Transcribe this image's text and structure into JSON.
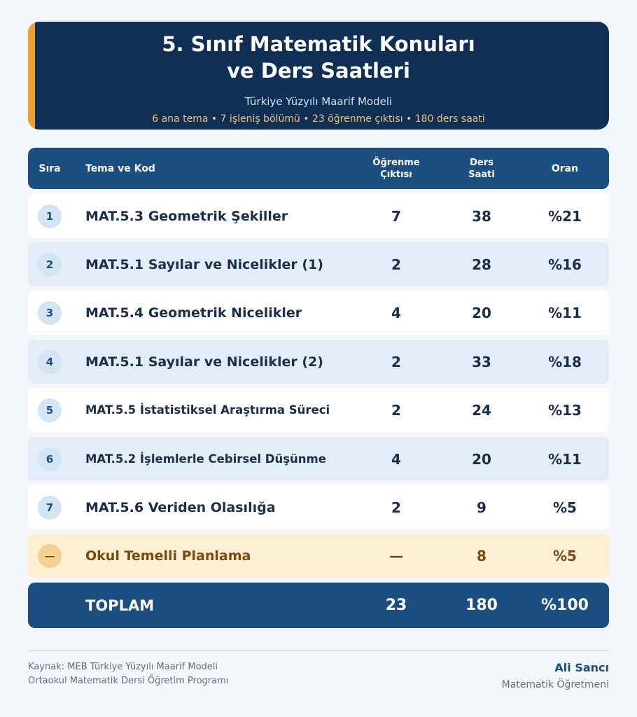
{
  "header": {
    "title_line1": "5. Sınıf Matematik Konuları",
    "title_line2": "ve Ders Saatleri",
    "subtitle": "Türkiye Yüzyılı Maarif Modeli",
    "stats": "6 ana tema • 7 işleniş bölümü • 23 öğrenme çıktısı • 180 ders saati"
  },
  "table": {
    "columns": {
      "sira": "Sıra",
      "tema": "Tema ve Kod",
      "cikti_line1": "Öğrenme",
      "cikti_line2": "Çıktısı",
      "saat_line1": "Ders",
      "saat_line2": "Saati",
      "oran": "Oran"
    },
    "rows": [
      {
        "sira": "1",
        "tema": "MAT.5.3 Geometrik Şekiller",
        "cikti": "7",
        "saat": "38",
        "oran": "%21"
      },
      {
        "sira": "2",
        "tema": "MAT.5.1 Sayılar ve Nicelikler (1)",
        "cikti": "2",
        "saat": "28",
        "oran": "%16"
      },
      {
        "sira": "3",
        "tema": "MAT.5.4 Geometrik Nicelikler",
        "cikti": "4",
        "saat": "20",
        "oran": "%11"
      },
      {
        "sira": "4",
        "tema": "MAT.5.1 Sayılar ve Nicelikler (2)",
        "cikti": "2",
        "saat": "33",
        "oran": "%18"
      },
      {
        "sira": "5",
        "tema": "MAT.5.5 İstatistiksel Araştırma Süreci",
        "cikti": "2",
        "saat": "24",
        "oran": "%13"
      },
      {
        "sira": "6",
        "tema": "MAT.5.2 İşlemlerle Cebirsel Düşünme",
        "cikti": "4",
        "saat": "20",
        "oran": "%11"
      },
      {
        "sira": "7",
        "tema": "MAT.5.6 Veriden Olasılığa",
        "cikti": "2",
        "saat": "9",
        "oran": "%5"
      },
      {
        "sira": "—",
        "tema": "Okul Temelli Planlama",
        "cikti": "—",
        "saat": "8",
        "oran": "%5"
      }
    ],
    "total": {
      "label": "TOPLAM",
      "cikti": "23",
      "saat": "180",
      "oran": "%100"
    }
  },
  "footer": {
    "source_line1": "Kaynak: MEB Türkiye Yüzyılı Maarif Modeli",
    "source_line2": "Ortaokul Matematik Dersi Öğretim Programı",
    "author_name": "Ali Sancı",
    "author_role": "Matematik Öğretmeni"
  },
  "colors": {
    "header_bg": "#0f2f55",
    "accent": "#f0a030",
    "table_head_bg": "#1a4f80",
    "special_row_bg": "#fdefd4"
  }
}
